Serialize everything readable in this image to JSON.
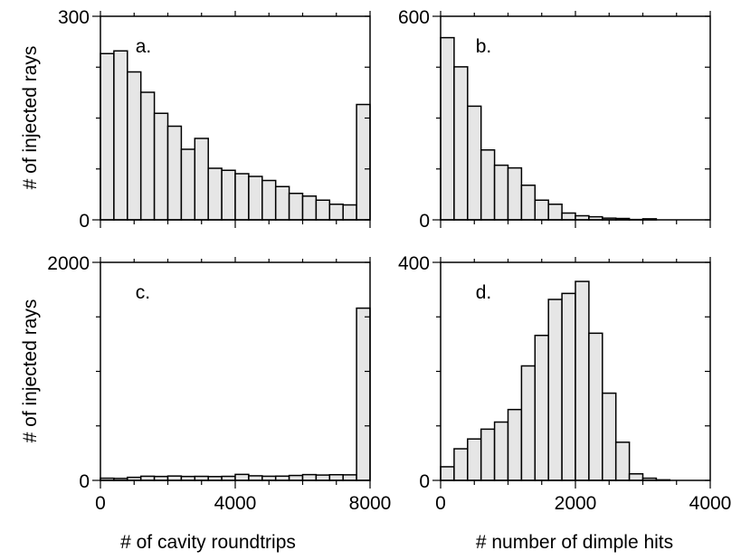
{
  "figure": {
    "ylabel_top": "# of injected rays",
    "ylabel_bottom": "# of injected rays",
    "xlabel_left": "#  of cavity roundtrips",
    "xlabel_right": "# number of dimple hits",
    "colors": {
      "bar_fill": "#e6e6e6",
      "bar_edge": "#000000"
    }
  },
  "chart_data": [
    {
      "type": "bar",
      "panel": "a.",
      "xlim": [
        0,
        8000
      ],
      "ylim": [
        0,
        300
      ],
      "bin_width": 400,
      "x_ticks": [
        0,
        4000,
        8000
      ],
      "y_tick_labels": [
        "0",
        "300"
      ],
      "values": [
        245,
        249,
        218,
        188,
        157,
        138,
        104,
        120,
        76,
        73,
        68,
        64,
        58,
        49,
        39,
        35,
        29,
        23,
        22,
        170
      ]
    },
    {
      "type": "bar",
      "panel": "b.",
      "xlim": [
        0,
        4000
      ],
      "ylim": [
        0,
        600
      ],
      "bin_width": 200,
      "x_ticks": [
        0,
        2000,
        4000
      ],
      "y_tick_labels": [
        "0",
        "600"
      ],
      "values": [
        537,
        451,
        335,
        206,
        161,
        153,
        102,
        58,
        46,
        20,
        12,
        9,
        5,
        4,
        1,
        3,
        0,
        0,
        0,
        0
      ]
    },
    {
      "type": "bar",
      "panel": "c.",
      "xlim": [
        0,
        8000
      ],
      "ylim": [
        0,
        2000
      ],
      "bin_width": 400,
      "x_ticks": [
        0,
        4000,
        8000
      ],
      "x_tick_labels": [
        "0",
        "4000",
        "8000"
      ],
      "y_tick_labels": [
        "0",
        "2000"
      ],
      "values": [
        20,
        18,
        28,
        38,
        36,
        40,
        36,
        37,
        35,
        37,
        55,
        42,
        38,
        39,
        45,
        53,
        49,
        52,
        51,
        1580
      ]
    },
    {
      "type": "bar",
      "panel": "d.",
      "xlim": [
        0,
        4000
      ],
      "ylim": [
        0,
        400
      ],
      "bin_width": 200,
      "x_ticks": [
        0,
        2000,
        4000
      ],
      "x_tick_labels": [
        "0",
        "2000",
        "4000"
      ],
      "y_tick_labels": [
        "0",
        "400"
      ],
      "values": [
        25,
        58,
        76,
        94,
        107,
        130,
        210,
        266,
        332,
        343,
        365,
        270,
        160,
        70,
        12,
        4,
        1,
        0,
        0,
        0
      ]
    }
  ]
}
